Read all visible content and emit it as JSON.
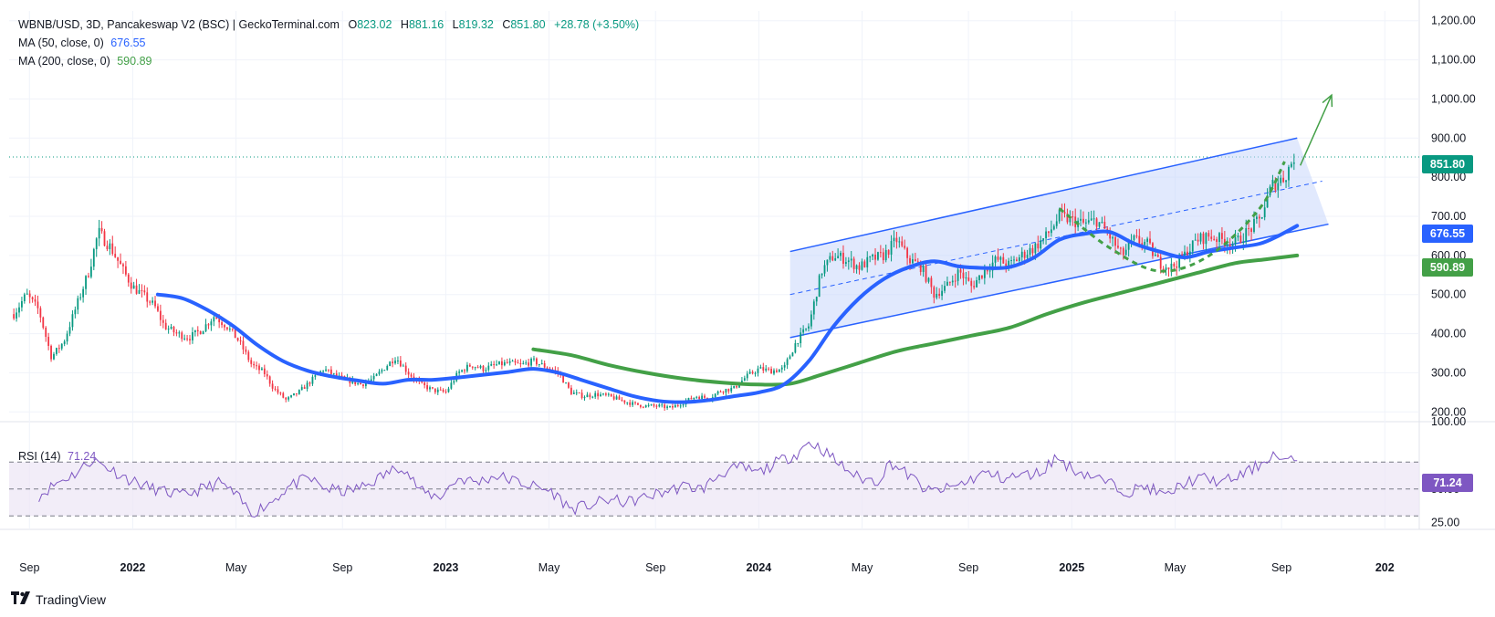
{
  "header": {
    "symbol_line": "WBNB/USD, 3D, Pancakeswap V2 (BSC) | GeckoTerminal.com",
    "o_label": "O",
    "o_value": "823.02",
    "h_label": "H",
    "h_value": "881.16",
    "l_label": "L",
    "l_value": "819.32",
    "c_label": "C",
    "c_value": "851.80",
    "change": "+28.78 (+3.50%)"
  },
  "indicators": {
    "ma50": {
      "label": "MA (50, close, 0)",
      "value": "676.55",
      "color": "#2962ff"
    },
    "ma200": {
      "label": "MA (200, close, 0)",
      "value": "590.89",
      "color": "#43a047"
    },
    "rsi": {
      "label": "RSI (14)",
      "value": "71.24",
      "color": "#7e57c2"
    }
  },
  "badges": {
    "price": "851.80",
    "ma50": "676.55",
    "ma200": "590.89",
    "rsi": "71.24"
  },
  "footer": {
    "brand": "TradingView",
    "logo_icon": "tradingview-logo-icon"
  },
  "chart_data": {
    "type": "line",
    "title": "WBNB/USD, 3D, Pancakeswap V2 (BSC) | GeckoTerminal.com",
    "price_axis": {
      "ticks": [
        200,
        300,
        400,
        500,
        600,
        700,
        800,
        900,
        1000,
        1100,
        1200
      ],
      "tick_labels": [
        "200.00",
        "300.00",
        "400.00",
        "500.00",
        "600.00",
        "700.00",
        "800.00",
        "900.00",
        "1,000.00",
        "1,100.00",
        "1,200.00"
      ],
      "ylim": [
        175,
        1225
      ]
    },
    "rsi_axis": {
      "ticks": [
        25,
        50,
        100
      ],
      "tick_labels": [
        "25.00",
        "50.00",
        "100.00"
      ],
      "levels": [
        30,
        50,
        70
      ],
      "ylim": [
        20,
        100
      ]
    },
    "time_axis": {
      "labels": [
        "Sep",
        "2022",
        "May",
        "Sep",
        "2023",
        "May",
        "Sep",
        "2024",
        "May",
        "Sep",
        "2025",
        "May",
        "Sep",
        "202"
      ],
      "bold": [
        false,
        true,
        false,
        false,
        true,
        false,
        false,
        true,
        false,
        false,
        true,
        false,
        false,
        true
      ],
      "t": [
        2021.67,
        2022.0,
        2022.33,
        2022.67,
        2023.0,
        2023.33,
        2023.67,
        2024.0,
        2024.33,
        2024.67,
        2025.0,
        2025.33,
        2025.67,
        2026.0
      ]
    },
    "grid": true,
    "colors": {
      "up": "#089981",
      "down": "#f23645",
      "channel": "#2962ff",
      "channel_fill": "#c9d7fb",
      "ma50": "#2962ff",
      "ma200": "#43a047",
      "rsi": "#7e57c2",
      "rsi_band": "#ede7f6"
    },
    "price_path": [
      [
        2021.62,
        450
      ],
      [
        2021.66,
        500
      ],
      [
        2021.7,
        460
      ],
      [
        2021.74,
        340
      ],
      [
        2021.78,
        380
      ],
      [
        2021.82,
        470
      ],
      [
        2021.86,
        560
      ],
      [
        2021.89,
        660
      ],
      [
        2021.93,
        620
      ],
      [
        2021.97,
        560
      ],
      [
        2022.0,
        520
      ],
      [
        2022.03,
        500
      ],
      [
        2022.07,
        470
      ],
      [
        2022.1,
        420
      ],
      [
        2022.14,
        400
      ],
      [
        2022.18,
        390
      ],
      [
        2022.22,
        410
      ],
      [
        2022.26,
        445
      ],
      [
        2022.3,
        420
      ],
      [
        2022.34,
        380
      ],
      [
        2022.38,
        320
      ],
      [
        2022.42,
        300
      ],
      [
        2022.45,
        260
      ],
      [
        2022.49,
        230
      ],
      [
        2022.53,
        250
      ],
      [
        2022.57,
        280
      ],
      [
        2022.61,
        310
      ],
      [
        2022.65,
        290
      ],
      [
        2022.69,
        280
      ],
      [
        2022.73,
        270
      ],
      [
        2022.77,
        285
      ],
      [
        2022.8,
        310
      ],
      [
        2022.84,
        340
      ],
      [
        2022.88,
        300
      ],
      [
        2022.92,
        270
      ],
      [
        2022.96,
        255
      ],
      [
        2023.0,
        250
      ],
      [
        2023.04,
        300
      ],
      [
        2023.08,
        320
      ],
      [
        2023.12,
        310
      ],
      [
        2023.16,
        320
      ],
      [
        2023.2,
        325
      ],
      [
        2023.24,
        320
      ],
      [
        2023.28,
        330
      ],
      [
        2023.32,
        315
      ],
      [
        2023.36,
        300
      ],
      [
        2023.4,
        250
      ],
      [
        2023.44,
        240
      ],
      [
        2023.48,
        245
      ],
      [
        2023.52,
        240
      ],
      [
        2023.56,
        230
      ],
      [
        2023.6,
        220
      ],
      [
        2023.64,
        215
      ],
      [
        2023.68,
        215
      ],
      [
        2023.72,
        210
      ],
      [
        2023.76,
        225
      ],
      [
        2023.8,
        240
      ],
      [
        2023.84,
        235
      ],
      [
        2023.88,
        255
      ],
      [
        2023.92,
        260
      ],
      [
        2023.96,
        290
      ],
      [
        2024.0,
        310
      ],
      [
        2024.04,
        305
      ],
      [
        2024.08,
        310
      ],
      [
        2024.12,
        380
      ],
      [
        2024.16,
        420
      ],
      [
        2024.2,
        560
      ],
      [
        2024.24,
        600
      ],
      [
        2024.28,
        590
      ],
      [
        2024.32,
        570
      ],
      [
        2024.36,
        590
      ],
      [
        2024.4,
        600
      ],
      [
        2024.44,
        640
      ],
      [
        2024.48,
        590
      ],
      [
        2024.52,
        570
      ],
      [
        2024.56,
        500
      ],
      [
        2024.6,
        520
      ],
      [
        2024.64,
        560
      ],
      [
        2024.68,
        520
      ],
      [
        2024.72,
        560
      ],
      [
        2024.76,
        590
      ],
      [
        2024.8,
        575
      ],
      [
        2024.84,
        600
      ],
      [
        2024.88,
        620
      ],
      [
        2024.92,
        650
      ],
      [
        2024.96,
        700
      ],
      [
        2025.0,
        690
      ],
      [
        2025.04,
        680
      ],
      [
        2025.08,
        690
      ],
      [
        2025.12,
        650
      ],
      [
        2025.16,
        600
      ],
      [
        2025.2,
        640
      ],
      [
        2025.24,
        630
      ],
      [
        2025.28,
        580
      ],
      [
        2025.32,
        570
      ],
      [
        2025.36,
        600
      ],
      [
        2025.4,
        640
      ],
      [
        2025.44,
        650
      ],
      [
        2025.48,
        640
      ],
      [
        2025.52,
        630
      ],
      [
        2025.56,
        660
      ],
      [
        2025.6,
        690
      ],
      [
        2025.64,
        780
      ],
      [
        2025.68,
        800
      ],
      [
        2025.71,
        852
      ]
    ],
    "ma50_path": [
      [
        2022.08,
        500
      ],
      [
        2022.16,
        490
      ],
      [
        2022.24,
        460
      ],
      [
        2022.32,
        420
      ],
      [
        2022.4,
        370
      ],
      [
        2022.48,
        330
      ],
      [
        2022.56,
        305
      ],
      [
        2022.64,
        290
      ],
      [
        2022.72,
        280
      ],
      [
        2022.8,
        272
      ],
      [
        2022.88,
        282
      ],
      [
        2022.96,
        282
      ],
      [
        2023.04,
        288
      ],
      [
        2023.12,
        295
      ],
      [
        2023.2,
        302
      ],
      [
        2023.28,
        310
      ],
      [
        2023.36,
        300
      ],
      [
        2023.44,
        280
      ],
      [
        2023.52,
        260
      ],
      [
        2023.6,
        240
      ],
      [
        2023.68,
        228
      ],
      [
        2023.76,
        225
      ],
      [
        2023.84,
        230
      ],
      [
        2023.92,
        240
      ],
      [
        2024.0,
        250
      ],
      [
        2024.08,
        270
      ],
      [
        2024.16,
        330
      ],
      [
        2024.24,
        420
      ],
      [
        2024.32,
        490
      ],
      [
        2024.4,
        540
      ],
      [
        2024.48,
        570
      ],
      [
        2024.56,
        585
      ],
      [
        2024.64,
        572
      ],
      [
        2024.72,
        568
      ],
      [
        2024.8,
        570
      ],
      [
        2024.88,
        595
      ],
      [
        2024.96,
        640
      ],
      [
        2025.04,
        655
      ],
      [
        2025.12,
        660
      ],
      [
        2025.2,
        630
      ],
      [
        2025.28,
        610
      ],
      [
        2025.36,
        595
      ],
      [
        2025.44,
        610
      ],
      [
        2025.52,
        620
      ],
      [
        2025.6,
        630
      ],
      [
        2025.66,
        650
      ],
      [
        2025.72,
        676
      ]
    ],
    "ma200_path": [
      [
        2023.28,
        360
      ],
      [
        2023.4,
        345
      ],
      [
        2023.52,
        320
      ],
      [
        2023.64,
        300
      ],
      [
        2023.76,
        285
      ],
      [
        2023.88,
        275
      ],
      [
        2024.0,
        270
      ],
      [
        2024.1,
        272
      ],
      [
        2024.2,
        295
      ],
      [
        2024.32,
        325
      ],
      [
        2024.44,
        355
      ],
      [
        2024.56,
        375
      ],
      [
        2024.68,
        395
      ],
      [
        2024.8,
        415
      ],
      [
        2024.92,
        450
      ],
      [
        2025.04,
        480
      ],
      [
        2025.16,
        505
      ],
      [
        2025.28,
        530
      ],
      [
        2025.4,
        555
      ],
      [
        2025.52,
        580
      ],
      [
        2025.62,
        590
      ],
      [
        2025.72,
        600
      ]
    ],
    "projection_curve": [
      [
        2024.96,
        720
      ],
      [
        2025.12,
        620
      ],
      [
        2025.28,
        560
      ],
      [
        2025.44,
        600
      ],
      [
        2025.6,
        720
      ],
      [
        2025.68,
        840
      ]
    ],
    "channel": {
      "upper": [
        [
          2024.1,
          610
        ],
        [
          2025.72,
          900
        ]
      ],
      "lower": [
        [
          2024.1,
          390
        ],
        [
          2025.82,
          680
        ]
      ],
      "mid": [
        [
          2024.1,
          500
        ],
        [
          2025.8,
          790
        ]
      ]
    },
    "projection_arrow": {
      "from": [
        2025.73,
        830
      ],
      "to": [
        2025.83,
        1010
      ]
    },
    "last_price": 851.8,
    "rsi_path": [
      [
        2021.7,
        45
      ],
      [
        2021.76,
        55
      ],
      [
        2021.82,
        62
      ],
      [
        2021.87,
        72
      ],
      [
        2021.92,
        66
      ],
      [
        2021.98,
        58
      ],
      [
        2022.04,
        52
      ],
      [
        2022.1,
        48
      ],
      [
        2022.16,
        45
      ],
      [
        2022.22,
        50
      ],
      [
        2022.28,
        55
      ],
      [
        2022.33,
        45
      ],
      [
        2022.38,
        32
      ],
      [
        2022.44,
        40
      ],
      [
        2022.5,
        52
      ],
      [
        2022.56,
        58
      ],
      [
        2022.62,
        50
      ],
      [
        2022.68,
        48
      ],
      [
        2022.74,
        52
      ],
      [
        2022.8,
        60
      ],
      [
        2022.86,
        68
      ],
      [
        2022.92,
        48
      ],
      [
        2022.98,
        44
      ],
      [
        2023.04,
        58
      ],
      [
        2023.1,
        55
      ],
      [
        2023.16,
        60
      ],
      [
        2023.22,
        56
      ],
      [
        2023.28,
        52
      ],
      [
        2023.34,
        48
      ],
      [
        2023.4,
        35
      ],
      [
        2023.46,
        38
      ],
      [
        2023.52,
        42
      ],
      [
        2023.58,
        40
      ],
      [
        2023.64,
        44
      ],
      [
        2023.7,
        48
      ],
      [
        2023.76,
        52
      ],
      [
        2023.82,
        50
      ],
      [
        2023.88,
        62
      ],
      [
        2023.94,
        66
      ],
      [
        2024.0,
        62
      ],
      [
        2024.06,
        70
      ],
      [
        2024.12,
        76
      ],
      [
        2024.16,
        85
      ],
      [
        2024.2,
        80
      ],
      [
        2024.26,
        68
      ],
      [
        2024.32,
        58
      ],
      [
        2024.38,
        56
      ],
      [
        2024.42,
        70
      ],
      [
        2024.48,
        60
      ],
      [
        2024.54,
        48
      ],
      [
        2024.6,
        50
      ],
      [
        2024.66,
        55
      ],
      [
        2024.72,
        62
      ],
      [
        2024.78,
        58
      ],
      [
        2024.84,
        60
      ],
      [
        2024.9,
        62
      ],
      [
        2024.95,
        74
      ],
      [
        2025.0,
        65
      ],
      [
        2025.06,
        60
      ],
      [
        2025.12,
        54
      ],
      [
        2025.18,
        48
      ],
      [
        2025.24,
        52
      ],
      [
        2025.3,
        44
      ],
      [
        2025.36,
        55
      ],
      [
        2025.42,
        58
      ],
      [
        2025.48,
        55
      ],
      [
        2025.54,
        60
      ],
      [
        2025.6,
        68
      ],
      [
        2025.64,
        76
      ],
      [
        2025.68,
        70
      ],
      [
        2025.72,
        71
      ]
    ]
  }
}
